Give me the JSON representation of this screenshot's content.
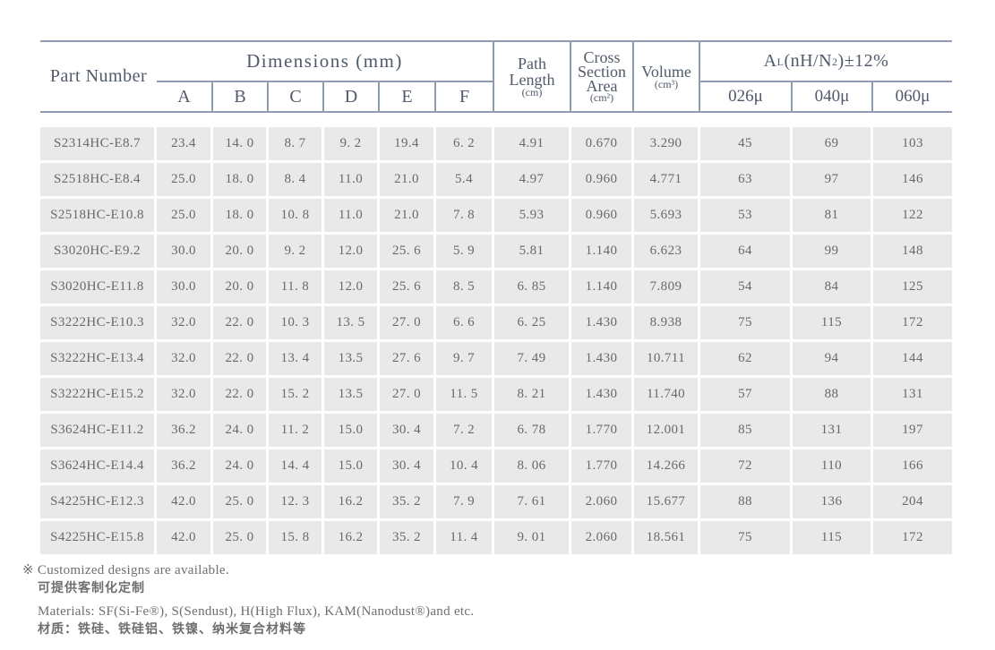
{
  "colors": {
    "border": "#8e9cb3",
    "cell_background": "#e9e9e9",
    "header_text": "#4f5a6a",
    "data_text": "#67696c"
  },
  "table": {
    "header": {
      "part_number": "Part Number",
      "dimensions": "Dimensions (mm)",
      "dim_cols": [
        "A",
        "B",
        "C",
        "D",
        "E",
        "F"
      ],
      "path_length": {
        "line1": "Path",
        "line2": "Length",
        "unit": "(cm)"
      },
      "cross_section": {
        "line1": "Cross",
        "line2": "Section",
        "line3": "Area",
        "unit": "(cm²)"
      },
      "volume": {
        "label": "Volume",
        "unit": "(cm³)"
      },
      "al": {
        "base": "A",
        "sub": "L",
        "mid": "(nH/N",
        "sup": "2",
        "tail": ")±12%"
      },
      "al_cols": [
        "026μ",
        "040μ",
        "060μ"
      ]
    },
    "rows": [
      [
        "S2314HC-E8.7",
        "23.4",
        "14. 0",
        "8. 7",
        "9. 2",
        "19.4",
        "6. 2",
        "4.91",
        "0.670",
        "3.290",
        "45",
        "69",
        "103"
      ],
      [
        "S2518HC-E8.4",
        "25.0",
        "18. 0",
        "8. 4",
        "11.0",
        "21.0",
        "5.4",
        "4.97",
        "0.960",
        "4.771",
        "63",
        "97",
        "146"
      ],
      [
        "S2518HC-E10.8",
        "25.0",
        "18. 0",
        "10. 8",
        "11.0",
        "21.0",
        "7. 8",
        "5.93",
        "0.960",
        "5.693",
        "53",
        "81",
        "122"
      ],
      [
        "S3020HC-E9.2",
        "30.0",
        "20. 0",
        "9. 2",
        "12.0",
        "25. 6",
        "5. 9",
        "5.81",
        "1.140",
        "6.623",
        "64",
        "99",
        "148"
      ],
      [
        "S3020HC-E11.8",
        "30.0",
        "20. 0",
        "11. 8",
        "12.0",
        "25. 6",
        "8. 5",
        "6. 85",
        "1.140",
        "7.809",
        "54",
        "84",
        "125"
      ],
      [
        "S3222HC-E10.3",
        "32.0",
        "22. 0",
        "10. 3",
        "13. 5",
        "27. 0",
        "6. 6",
        "6. 25",
        "1.430",
        "8.938",
        "75",
        "115",
        "172"
      ],
      [
        "S3222HC-E13.4",
        "32.0",
        "22. 0",
        "13. 4",
        "13.5",
        "27. 6",
        "9. 7",
        "7. 49",
        "1.430",
        "10.711",
        "62",
        "94",
        "144"
      ],
      [
        "S3222HC-E15.2",
        "32.0",
        "22. 0",
        "15. 2",
        "13.5",
        "27. 0",
        "11. 5",
        "8. 21",
        "1.430",
        "11.740",
        "57",
        "88",
        "131"
      ],
      [
        "S3624HC-E11.2",
        "36.2",
        "24. 0",
        "11. 2",
        "15.0",
        "30. 4",
        "7. 2",
        "6. 78",
        "1.770",
        "12.001",
        "85",
        "131",
        "197"
      ],
      [
        "S3624HC-E14.4",
        "36.2",
        "24. 0",
        "14. 4",
        "15.0",
        "30. 4",
        "10. 4",
        "8. 06",
        "1.770",
        "14.266",
        "72",
        "110",
        "166"
      ],
      [
        "S4225HC-E12.3",
        "42.0",
        "25. 0",
        "12. 3",
        "16.2",
        "35. 2",
        "7. 9",
        "7. 61",
        "2.060",
        "15.677",
        "88",
        "136",
        "204"
      ],
      [
        "S4225HC-E15.8",
        "42.0",
        "25. 0",
        "15. 8",
        "16.2",
        "35. 2",
        "11. 4",
        "9. 01",
        "2.060",
        "18.561",
        "75",
        "115",
        "172"
      ]
    ]
  },
  "notes": {
    "note1_en": "※ Customized designs are available.",
    "note1_cn": "可提供客制化定制",
    "note2_en": "Materials: SF(Si-Fe®), S(Sendust), H(High Flux), KAM(Nanodust®)and etc.",
    "note2_cn": "材质：铁硅、铁硅铝、铁镍、纳米复合材料等"
  }
}
